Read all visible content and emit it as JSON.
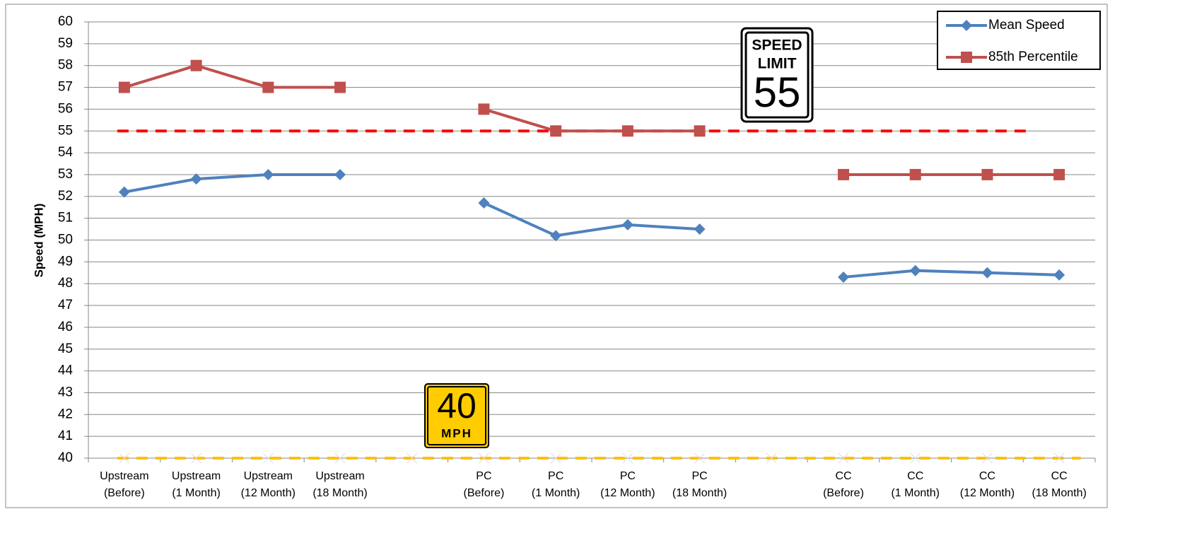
{
  "chart_data": {
    "type": "line",
    "ylabel": "Speed (MPH)",
    "categories": [
      [
        "Upstream",
        "(Before)"
      ],
      [
        "Upstream",
        "(1 Month)"
      ],
      [
        "Upstream",
        "(12 Month)"
      ],
      [
        "Upstream",
        "(18 Month)"
      ],
      null,
      [
        "PC",
        "(Before)"
      ],
      [
        "PC",
        "(1 Month)"
      ],
      [
        "PC",
        "(12 Month)"
      ],
      [
        "PC",
        "(18 Month)"
      ],
      null,
      [
        "CC",
        "(Before)"
      ],
      [
        "CC",
        "(1 Month)"
      ],
      [
        "CC",
        "(12 Month)"
      ],
      [
        "CC",
        "(18 Month)"
      ]
    ],
    "series": [
      {
        "name": "Mean Speed",
        "color": "#4f81bd",
        "marker": "diamond",
        "values": [
          52.2,
          52.8,
          53,
          53,
          null,
          51.7,
          50.2,
          50.7,
          50.5,
          null,
          48.3,
          48.6,
          48.5,
          48.4
        ]
      },
      {
        "name": "85th Percentile",
        "color": "#c0504d",
        "marker": "square",
        "values": [
          57,
          58,
          57,
          57,
          null,
          56,
          55,
          55,
          55,
          null,
          53,
          53,
          53,
          53
        ]
      }
    ],
    "reference_lines": [
      {
        "value": 55,
        "color": "#ff0000"
      },
      {
        "value": 40,
        "color": "#ffc000"
      }
    ],
    "signs": {
      "limit_top": "SPEED",
      "limit_mid": "LIMIT",
      "limit_num": "55",
      "advisory_num": "40",
      "advisory_unit": "MPH"
    },
    "ylim": [
      40,
      60
    ],
    "yticks": [
      40,
      41,
      42,
      43,
      44,
      45,
      46,
      47,
      48,
      49,
      50,
      51,
      52,
      53,
      54,
      55,
      56,
      57,
      58,
      59,
      60
    ],
    "grid": true,
    "legend": "top-right"
  }
}
